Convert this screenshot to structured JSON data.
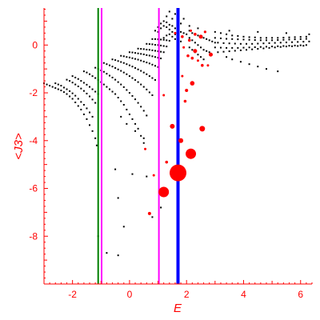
{
  "colors": {
    "axis": "#ff0000",
    "green_line": "#008000",
    "magenta_line": "#ff00ff",
    "blue_line": "#0000ff",
    "markers_black": "#000000",
    "markers_red": "#ff0000"
  },
  "chart_data": {
    "type": "scatter",
    "xlabel": "E",
    "ylabel": "<J3>",
    "xlim": [
      -3,
      6.4
    ],
    "ylim": [
      -10,
      1.55
    ],
    "xticks": [
      -2,
      0,
      2,
      4,
      6
    ],
    "yticks": [
      -8,
      -6,
      -4,
      -2,
      0
    ],
    "xtick_labels": [
      "-2",
      "0",
      "2",
      "4",
      "6"
    ],
    "ytick_labels": [
      "-8",
      "-6",
      "-4",
      "-2",
      "0"
    ],
    "grid": false,
    "vertical_lines": [
      {
        "color": "#008000",
        "x": -1.1
      },
      {
        "color": "#ff00ff",
        "x": -0.98
      },
      {
        "color": "#ff00ff",
        "x": 1.03
      },
      {
        "color": "#0000ff",
        "x": 1.7
      }
    ],
    "black_points": [
      [
        -3.0,
        -1.6
      ],
      [
        -2.9,
        -1.65
      ],
      [
        -2.8,
        -1.7
      ],
      [
        -2.7,
        -1.75
      ],
      [
        -2.6,
        -1.8
      ],
      [
        -2.5,
        -1.85
      ],
      [
        -2.4,
        -1.9
      ],
      [
        -2.3,
        -1.97
      ],
      [
        -2.2,
        -2.05
      ],
      [
        -2.1,
        -2.15
      ],
      [
        -2.0,
        -2.25
      ],
      [
        -1.9,
        -2.4
      ],
      [
        -1.8,
        -2.55
      ],
      [
        -1.7,
        -2.7
      ],
      [
        -1.6,
        -2.9
      ],
      [
        -1.5,
        -3.1
      ],
      [
        -1.4,
        -3.35
      ],
      [
        -1.3,
        -3.6
      ],
      [
        -1.2,
        -3.9
      ],
      [
        -1.15,
        -4.2
      ],
      [
        -2.6,
        -1.6
      ],
      [
        -2.5,
        -1.65
      ],
      [
        -2.4,
        -1.7
      ],
      [
        -2.3,
        -1.78
      ],
      [
        -2.2,
        -1.85
      ],
      [
        -2.1,
        -1.93
      ],
      [
        -2.0,
        -2.02
      ],
      [
        -1.9,
        -2.12
      ],
      [
        -1.8,
        -2.25
      ],
      [
        -1.7,
        -2.38
      ],
      [
        -1.6,
        -2.5
      ],
      [
        -1.5,
        -2.65
      ],
      [
        -1.4,
        -2.82
      ],
      [
        -1.3,
        -3.0
      ],
      [
        -2.2,
        -1.45
      ],
      [
        -2.1,
        -1.5
      ],
      [
        -2.0,
        -1.57
      ],
      [
        -1.9,
        -1.65
      ],
      [
        -1.8,
        -1.73
      ],
      [
        -1.7,
        -1.82
      ],
      [
        -1.6,
        -1.92
      ],
      [
        -1.5,
        -2.03
      ],
      [
        -1.4,
        -2.15
      ],
      [
        -1.3,
        -2.28
      ],
      [
        -1.2,
        -2.42
      ],
      [
        -2.0,
        -1.3
      ],
      [
        -1.9,
        -1.36
      ],
      [
        -1.8,
        -1.42
      ],
      [
        -1.7,
        -1.5
      ],
      [
        -1.6,
        -1.58
      ],
      [
        -1.5,
        -1.66
      ],
      [
        -1.4,
        -1.75
      ],
      [
        -1.3,
        -1.85
      ],
      [
        -1.2,
        -1.95
      ],
      [
        -1.1,
        -2.05
      ],
      [
        -1.6,
        -1.1
      ],
      [
        -1.5,
        -1.15
      ],
      [
        -1.4,
        -1.22
      ],
      [
        -1.3,
        -1.3
      ],
      [
        -1.2,
        -1.38
      ],
      [
        -1.1,
        -1.46
      ],
      [
        -1.0,
        -1.55
      ],
      [
        -0.9,
        -1.65
      ],
      [
        -0.8,
        -1.75
      ],
      [
        -0.7,
        -1.85
      ],
      [
        -0.6,
        -1.95
      ],
      [
        -0.5,
        -2.05
      ],
      [
        -0.4,
        -2.2
      ],
      [
        -0.3,
        -2.35
      ],
      [
        -0.2,
        -2.5
      ],
      [
        -0.1,
        -2.7
      ],
      [
        0.0,
        -2.9
      ],
      [
        0.1,
        -3.1
      ],
      [
        0.2,
        -3.3
      ],
      [
        0.3,
        -3.5
      ],
      [
        0.4,
        -3.8
      ],
      [
        0.5,
        -4.1
      ],
      [
        -1.2,
        -0.95
      ],
      [
        -1.1,
        -1.0
      ],
      [
        -1.0,
        -1.06
      ],
      [
        -0.9,
        -1.12
      ],
      [
        -0.8,
        -1.2
      ],
      [
        -0.7,
        -1.28
      ],
      [
        -0.6,
        -1.36
      ],
      [
        -0.5,
        -1.45
      ],
      [
        -0.4,
        -1.55
      ],
      [
        -0.3,
        -1.65
      ],
      [
        -0.2,
        -1.76
      ],
      [
        -0.1,
        -1.88
      ],
      [
        0.0,
        -2.0
      ],
      [
        0.1,
        -2.13
      ],
      [
        0.2,
        -2.27
      ],
      [
        0.3,
        -2.42
      ],
      [
        0.4,
        -2.58
      ],
      [
        0.5,
        -2.75
      ],
      [
        0.6,
        -2.95
      ],
      [
        -0.9,
        -0.75
      ],
      [
        -0.8,
        -0.8
      ],
      [
        -0.7,
        -0.85
      ],
      [
        -0.6,
        -0.9
      ],
      [
        -0.5,
        -0.96
      ],
      [
        -0.4,
        -1.02
      ],
      [
        -0.3,
        -1.08
      ],
      [
        -0.2,
        -1.15
      ],
      [
        -0.1,
        -1.22
      ],
      [
        0.0,
        -1.3
      ],
      [
        0.1,
        -1.38
      ],
      [
        0.2,
        -1.46
      ],
      [
        0.3,
        -1.55
      ],
      [
        0.4,
        -1.65
      ],
      [
        0.5,
        -1.75
      ],
      [
        0.6,
        -1.86
      ],
      [
        0.7,
        -1.98
      ],
      [
        0.8,
        -2.1
      ],
      [
        -0.6,
        -0.6
      ],
      [
        -0.5,
        -0.63
      ],
      [
        -0.4,
        -0.67
      ],
      [
        -0.3,
        -0.71
      ],
      [
        -0.2,
        -0.75
      ],
      [
        -0.1,
        -0.8
      ],
      [
        0.0,
        -0.85
      ],
      [
        0.1,
        -0.9
      ],
      [
        0.2,
        -0.96
      ],
      [
        0.3,
        -1.02
      ],
      [
        0.4,
        -1.08
      ],
      [
        0.5,
        -1.15
      ],
      [
        0.6,
        -1.22
      ],
      [
        0.7,
        -1.3
      ],
      [
        0.8,
        -1.38
      ],
      [
        0.9,
        -1.46
      ],
      [
        -0.3,
        -0.45
      ],
      [
        -0.2,
        -0.47
      ],
      [
        -0.1,
        -0.5
      ],
      [
        0.0,
        -0.52
      ],
      [
        0.1,
        -0.55
      ],
      [
        0.2,
        -0.58
      ],
      [
        0.3,
        -0.61
      ],
      [
        0.4,
        -0.65
      ],
      [
        0.5,
        -0.69
      ],
      [
        0.6,
        -0.73
      ],
      [
        0.7,
        -0.77
      ],
      [
        0.8,
        -0.82
      ],
      [
        0.9,
        -0.87
      ],
      [
        1.0,
        -0.92
      ],
      [
        0.0,
        -0.3
      ],
      [
        0.1,
        -0.31
      ],
      [
        0.2,
        -0.33
      ],
      [
        0.3,
        -0.35
      ],
      [
        0.4,
        -0.37
      ],
      [
        0.5,
        -0.39
      ],
      [
        0.6,
        -0.42
      ],
      [
        0.7,
        -0.44
      ],
      [
        0.8,
        -0.47
      ],
      [
        0.9,
        -0.5
      ],
      [
        1.0,
        -0.53
      ],
      [
        1.1,
        -0.56
      ],
      [
        0.3,
        -0.15
      ],
      [
        0.4,
        -0.16
      ],
      [
        0.5,
        -0.17
      ],
      [
        0.6,
        -0.19
      ],
      [
        0.7,
        -0.2
      ],
      [
        0.8,
        -0.22
      ],
      [
        0.9,
        -0.24
      ],
      [
        1.0,
        -0.26
      ],
      [
        1.1,
        -0.28
      ],
      [
        1.2,
        -0.3
      ],
      [
        0.6,
        0.05
      ],
      [
        0.7,
        0.04
      ],
      [
        0.8,
        0.03
      ],
      [
        0.9,
        0.01
      ],
      [
        1.0,
        0.0
      ],
      [
        1.1,
        -0.02
      ],
      [
        1.2,
        -0.04
      ],
      [
        1.3,
        -0.06
      ],
      [
        0.8,
        0.25
      ],
      [
        0.9,
        0.25
      ],
      [
        1.0,
        0.24
      ],
      [
        1.1,
        0.23
      ],
      [
        1.2,
        0.22
      ],
      [
        1.3,
        0.2
      ],
      [
        1.4,
        0.18
      ],
      [
        0.9,
        0.6
      ],
      [
        1.0,
        0.75
      ],
      [
        1.1,
        0.9
      ],
      [
        1.2,
        1.0
      ],
      [
        1.3,
        0.95
      ],
      [
        1.4,
        0.85
      ],
      [
        1.5,
        0.8
      ],
      [
        1.6,
        0.7
      ],
      [
        1.7,
        0.65
      ],
      [
        1.8,
        0.55
      ],
      [
        1.9,
        0.5
      ],
      [
        2.0,
        0.45
      ],
      [
        1.0,
        0.55
      ],
      [
        1.1,
        0.7
      ],
      [
        1.2,
        0.8
      ],
      [
        1.3,
        0.75
      ],
      [
        1.4,
        0.65
      ],
      [
        1.5,
        0.55
      ],
      [
        1.6,
        0.45
      ],
      [
        1.7,
        0.4
      ],
      [
        1.2,
        0.3
      ],
      [
        1.3,
        0.4
      ],
      [
        1.4,
        0.45
      ],
      [
        1.5,
        0.35
      ],
      [
        1.6,
        0.25
      ],
      [
        1.7,
        0.2
      ],
      [
        1.8,
        0.15
      ],
      [
        1.3,
        1.2
      ],
      [
        1.5,
        1.1
      ],
      [
        1.8,
        0.9
      ],
      [
        2.1,
        0.8
      ],
      [
        2.4,
        0.7
      ],
      [
        1.4,
        1.4
      ],
      [
        1.6,
        1.3
      ],
      [
        1.9,
        1.1
      ],
      [
        2.1,
        0.6
      ],
      [
        2.2,
        0.5
      ],
      [
        2.3,
        0.45
      ],
      [
        2.4,
        0.4
      ],
      [
        2.5,
        0.35
      ],
      [
        2.6,
        0.3
      ],
      [
        2.7,
        0.25
      ],
      [
        2.8,
        0.2
      ],
      [
        2.9,
        0.15
      ],
      [
        3.0,
        0.1
      ],
      [
        2.1,
        0.3
      ],
      [
        2.2,
        0.2
      ],
      [
        2.3,
        0.1
      ],
      [
        2.4,
        0.0
      ],
      [
        2.5,
        -0.1
      ],
      [
        2.6,
        -0.2
      ],
      [
        2.7,
        -0.25
      ],
      [
        2.8,
        -0.3
      ],
      [
        2.1,
        -0.1
      ],
      [
        2.2,
        -0.2
      ],
      [
        2.3,
        -0.3
      ],
      [
        2.4,
        -0.4
      ],
      [
        2.5,
        -0.5
      ],
      [
        2.6,
        -0.6
      ],
      [
        3.0,
        0.55
      ],
      [
        3.2,
        0.5
      ],
      [
        3.4,
        0.45
      ],
      [
        3.6,
        0.4
      ],
      [
        3.8,
        0.38
      ],
      [
        4.0,
        0.35
      ],
      [
        4.2,
        0.33
      ],
      [
        4.4,
        0.32
      ],
      [
        4.6,
        0.3
      ],
      [
        4.8,
        0.3
      ],
      [
        5.0,
        0.3
      ],
      [
        5.2,
        0.3
      ],
      [
        5.4,
        0.31
      ],
      [
        5.6,
        0.32
      ],
      [
        5.8,
        0.33
      ],
      [
        6.0,
        0.34
      ],
      [
        6.2,
        0.35
      ],
      [
        3.0,
        0.3
      ],
      [
        3.2,
        0.28
      ],
      [
        3.4,
        0.26
      ],
      [
        3.6,
        0.25
      ],
      [
        3.8,
        0.24
      ],
      [
        4.0,
        0.23
      ],
      [
        4.2,
        0.22
      ],
      [
        4.4,
        0.21
      ],
      [
        4.6,
        0.2
      ],
      [
        4.8,
        0.2
      ],
      [
        5.0,
        0.2
      ],
      [
        5.2,
        0.21
      ],
      [
        5.4,
        0.22
      ],
      [
        5.6,
        0.23
      ],
      [
        5.8,
        0.24
      ],
      [
        6.0,
        0.25
      ],
      [
        6.2,
        0.26
      ],
      [
        3.1,
        0.1
      ],
      [
        3.3,
        0.08
      ],
      [
        3.5,
        0.07
      ],
      [
        3.7,
        0.06
      ],
      [
        3.9,
        0.05
      ],
      [
        4.1,
        0.05
      ],
      [
        4.3,
        0.05
      ],
      [
        4.5,
        0.06
      ],
      [
        4.7,
        0.07
      ],
      [
        4.9,
        0.08
      ],
      [
        5.1,
        0.09
      ],
      [
        5.3,
        0.1
      ],
      [
        5.5,
        0.11
      ],
      [
        5.7,
        0.12
      ],
      [
        5.9,
        0.13
      ],
      [
        6.1,
        0.14
      ],
      [
        6.3,
        0.15
      ],
      [
        3.0,
        -0.1
      ],
      [
        3.2,
        -0.11
      ],
      [
        3.4,
        -0.12
      ],
      [
        3.6,
        -0.12
      ],
      [
        3.8,
        -0.12
      ],
      [
        4.0,
        -0.11
      ],
      [
        4.2,
        -0.1
      ],
      [
        4.4,
        -0.09
      ],
      [
        4.6,
        -0.08
      ],
      [
        4.8,
        -0.07
      ],
      [
        5.0,
        -0.06
      ],
      [
        5.2,
        -0.05
      ],
      [
        5.4,
        -0.04
      ],
      [
        5.6,
        -0.03
      ],
      [
        5.8,
        -0.02
      ],
      [
        6.0,
        -0.01
      ],
      [
        6.2,
        0.0
      ],
      [
        3.1,
        -0.3
      ],
      [
        3.3,
        -0.28
      ],
      [
        3.5,
        -0.26
      ],
      [
        3.7,
        -0.24
      ],
      [
        3.9,
        -0.22
      ],
      [
        4.1,
        -0.2
      ],
      [
        4.3,
        -0.18
      ],
      [
        4.5,
        -0.16
      ],
      [
        4.7,
        -0.14
      ],
      [
        4.9,
        -0.12
      ],
      [
        5.1,
        -0.1
      ],
      [
        5.3,
        -0.08
      ],
      [
        5.5,
        -0.06
      ],
      [
        5.7,
        -0.05
      ],
      [
        5.9,
        -0.04
      ],
      [
        6.1,
        -0.03
      ],
      [
        3.5,
        0.6
      ],
      [
        4.5,
        0.55
      ],
      [
        5.5,
        0.5
      ],
      [
        6.3,
        0.45
      ],
      [
        3.4,
        -0.5
      ],
      [
        3.6,
        -0.6
      ],
      [
        3.9,
        -0.7
      ],
      [
        4.2,
        -0.8
      ],
      [
        4.5,
        -0.9
      ],
      [
        4.8,
        -1.0
      ],
      [
        5.2,
        -1.1
      ],
      [
        -0.3,
        -3.0
      ],
      [
        -0.1,
        -3.3
      ],
      [
        0.2,
        -3.6
      ],
      [
        0.5,
        -3.9
      ],
      [
        -0.5,
        -5.2
      ],
      [
        0.1,
        -5.4
      ],
      [
        0.6,
        -5.5
      ],
      [
        -0.4,
        -6.4
      ],
      [
        -0.2,
        -7.6
      ],
      [
        -0.8,
        -8.7
      ],
      [
        -0.4,
        -8.8
      ],
      [
        -1.1,
        -8.0
      ],
      [
        0.8,
        -7.2
      ],
      [
        1.1,
        -6.8
      ]
    ],
    "red_points": [
      [
        1.7,
        -5.35,
        10.5
      ],
      [
        1.2,
        -6.15,
        6.5
      ],
      [
        2.15,
        -4.55,
        6.5
      ],
      [
        2.55,
        -3.5,
        3.5
      ],
      [
        1.5,
        -3.4,
        3.0
      ],
      [
        1.8,
        -4.0,
        3.0
      ],
      [
        0.7,
        -7.05,
        2.0
      ],
      [
        1.3,
        -4.9,
        1.8
      ],
      [
        0.85,
        -5.45,
        1.5
      ],
      [
        0.55,
        -4.35,
        1.5
      ],
      [
        2.2,
        -1.6,
        2.8
      ],
      [
        2.0,
        -1.9,
        2.0
      ],
      [
        2.55,
        -0.85,
        1.8
      ],
      [
        1.95,
        -2.35,
        1.8
      ],
      [
        2.3,
        -0.25,
        2.5
      ],
      [
        2.2,
        -0.55,
        1.8
      ],
      [
        2.05,
        -0.45,
        1.8
      ],
      [
        2.85,
        -0.4,
        2.5
      ],
      [
        2.5,
        0.35,
        2.5
      ],
      [
        2.3,
        0.45,
        1.8
      ],
      [
        2.1,
        0.2,
        1.8
      ],
      [
        1.85,
        0.35,
        1.8
      ],
      [
        2.65,
        0.55,
        1.6
      ],
      [
        2.15,
        0.6,
        1.5
      ],
      [
        1.6,
        0.5,
        1.5
      ],
      [
        1.9,
        -0.1,
        1.5
      ],
      [
        2.4,
        -0.65,
        1.5
      ],
      [
        1.2,
        -2.1,
        1.5
      ],
      [
        1.85,
        -1.3,
        1.5
      ],
      [
        2.75,
        -0.85,
        1.5
      ]
    ]
  }
}
